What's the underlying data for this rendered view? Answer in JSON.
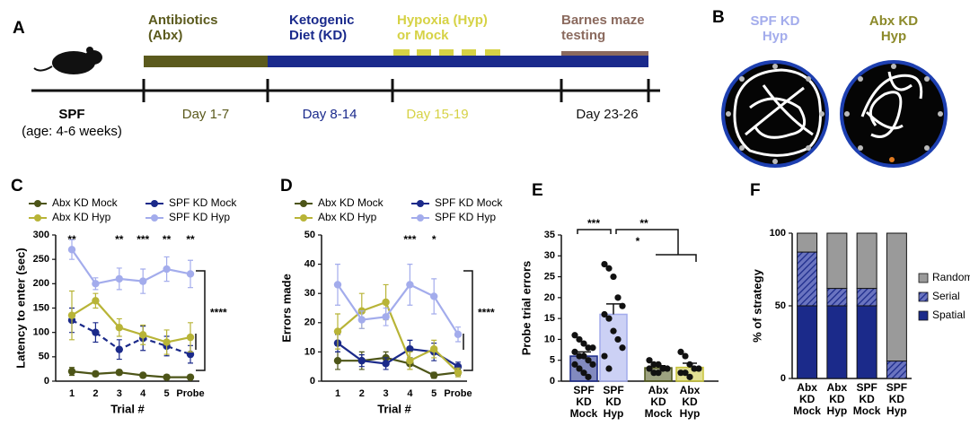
{
  "timeline": {
    "panel": "A",
    "phases": [
      {
        "label": "Antibiotics\n(Abx)",
        "color": "#5b5a1d"
      },
      {
        "label": "Ketogenic\nDiet (KD)",
        "color": "#1a2a8c"
      },
      {
        "label": "Hypoxia (Hyp)\nor Mock",
        "color": "#d6d245"
      },
      {
        "label": "Barnes maze\ntesting",
        "color": "#8b6a5e"
      }
    ],
    "days": [
      {
        "label": "Day 1-7",
        "color": "#5b5a1d"
      },
      {
        "label": "Day 8-14",
        "color": "#1a2a8c"
      },
      {
        "label": "Day 15-19",
        "color": "#d6d245"
      },
      {
        "label": "Day 23-26",
        "color": "#111111"
      }
    ],
    "start": "SPF",
    "age": "(age: 4-6 weeks)"
  },
  "maze": {
    "panel": "B",
    "titles": [
      {
        "label": "SPF KD\nHyp",
        "color": "#a3acec"
      },
      {
        "label": "Abx KD\nHyp",
        "color": "#8c8a2a"
      }
    ]
  },
  "chart_data": [
    {
      "type": "line",
      "panel": "C",
      "categories": [
        "1",
        "2",
        "3",
        "4",
        "5",
        "Probe"
      ],
      "xlabel": "Trial #",
      "ylabel": "Latency to enter (sec)",
      "ylim": [
        0,
        300
      ],
      "yticks": [
        0,
        50,
        100,
        150,
        200,
        250,
        300
      ],
      "series": [
        {
          "name": "Abx KD Mock",
          "color": "#4d5518",
          "linestyle": "solid",
          "values": [
            20,
            15,
            18,
            12,
            8,
            8
          ],
          "errors": [
            8,
            5,
            5,
            4,
            3,
            3
          ]
        },
        {
          "name": "SPF KD Mock",
          "color": "#1b2a8a",
          "linestyle": "dashed",
          "values": [
            125,
            100,
            65,
            88,
            72,
            55
          ],
          "errors": [
            25,
            20,
            20,
            25,
            20,
            18
          ]
        },
        {
          "name": "Abx KD Hyp",
          "color": "#b8b437",
          "linestyle": "solid",
          "values": [
            135,
            165,
            110,
            95,
            80,
            90
          ],
          "errors": [
            50,
            15,
            18,
            20,
            25,
            30
          ]
        },
        {
          "name": "SPF KD Hyp",
          "color": "#a3acec",
          "linestyle": "solid",
          "values": [
            270,
            200,
            210,
            205,
            230,
            220
          ],
          "errors": [
            20,
            12,
            22,
            25,
            25,
            28
          ]
        }
      ],
      "annotations": [
        {
          "text": "**",
          "category": "1"
        },
        {
          "text": "**",
          "category": "3"
        },
        {
          "text": "***",
          "category": "4"
        },
        {
          "text": "**",
          "category": "5"
        },
        {
          "text": "**",
          "category": "Probe"
        }
      ],
      "bracket_label": "****"
    },
    {
      "type": "line",
      "panel": "D",
      "categories": [
        "1",
        "2",
        "3",
        "4",
        "5",
        "Probe"
      ],
      "xlabel": "Trial #",
      "ylabel": "Errors made",
      "ylim": [
        0,
        50
      ],
      "yticks": [
        0,
        10,
        20,
        30,
        40,
        50
      ],
      "series": [
        {
          "name": "Abx KD Mock",
          "color": "#4d5518",
          "linestyle": "solid",
          "values": [
            7,
            7,
            8,
            6,
            2,
            3
          ],
          "errors": [
            3,
            3,
            2,
            2,
            1,
            1
          ]
        },
        {
          "name": "SPF KD Mock",
          "color": "#1b2a8a",
          "linestyle": "solid",
          "values": [
            13,
            7,
            6,
            11,
            10,
            5
          ],
          "errors": [
            3,
            2,
            2,
            3,
            3,
            1.5
          ]
        },
        {
          "name": "Abx KD Hyp",
          "color": "#b8b437",
          "linestyle": "solid",
          "values": [
            17,
            24,
            27,
            7,
            11,
            3
          ],
          "errors": [
            6,
            6,
            6,
            3,
            3,
            1.5
          ]
        },
        {
          "name": "SPF KD Hyp",
          "color": "#a3acec",
          "linestyle": "solid",
          "values": [
            33,
            21,
            22,
            33,
            29,
            16
          ],
          "errors": [
            7,
            3,
            3,
            7,
            6,
            2.5
          ]
        }
      ],
      "annotations": [
        {
          "text": "***",
          "category": "4"
        },
        {
          "text": "*",
          "category": "5"
        }
      ],
      "bracket_label": "****"
    },
    {
      "type": "bar",
      "panel": "E",
      "categories": [
        "SPF\nKD\nMock",
        "SPF\nKD\nHyp",
        "Abx\nKD\nMock",
        "Abx\nKD\nHyp"
      ],
      "ylabel": "Probe trial errors",
      "ylim": [
        0,
        35
      ],
      "yticks": [
        0,
        5,
        10,
        15,
        20,
        25,
        30,
        35
      ],
      "colors": [
        "#1b2a8a",
        "#a3acec",
        "#4d5518",
        "#c8c43a"
      ],
      "values": [
        6,
        16,
        3.2,
        3.3
      ],
      "errors": [
        1,
        2.5,
        0.5,
        1
      ],
      "points": [
        [
          11,
          10,
          9,
          8,
          8,
          7,
          6,
          6,
          5,
          4,
          4,
          3,
          2,
          1
        ],
        [
          28,
          27,
          25,
          20,
          18,
          16,
          15,
          12,
          10,
          8,
          6,
          3
        ],
        [
          5,
          4,
          4,
          3,
          3,
          3,
          2,
          2
        ],
        [
          7,
          6,
          4,
          3,
          3,
          2,
          2,
          1
        ]
      ],
      "annotations": [
        {
          "text": "***"
        },
        {
          "text": "**"
        },
        {
          "text": "*"
        }
      ]
    },
    {
      "type": "stacked_bar",
      "panel": "F",
      "categories": [
        "Abx\nKD\nMock",
        "Abx\nKD\nHyp",
        "SPF\nKD\nMock",
        "SPF\nKD\nHyp"
      ],
      "ylabel": "% of strategy",
      "ylim": [
        0,
        100
      ],
      "yticks": [
        0,
        50,
        100
      ],
      "series": [
        {
          "name": "Spatial",
          "color": "#1b2a8a",
          "pattern": "solid",
          "values": [
            50,
            50,
            50,
            0
          ]
        },
        {
          "name": "Serial",
          "color": "#1b2a8a",
          "pattern": "hatch",
          "values": [
            37,
            12,
            12,
            12
          ]
        },
        {
          "name": "Random",
          "color": "#9a9a9a",
          "pattern": "solid",
          "values": [
            13,
            38,
            38,
            88
          ]
        }
      ]
    }
  ]
}
